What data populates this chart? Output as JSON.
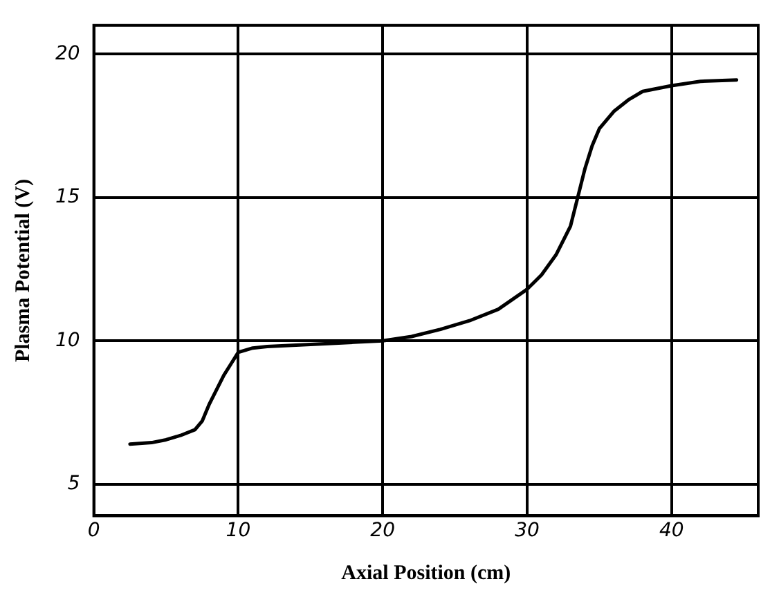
{
  "chart_data": {
    "type": "line",
    "xlabel": "Axial Position (cm)",
    "ylabel": "Plasma Potential (V)",
    "xlim": [
      0,
      46
    ],
    "xticks": [
      0,
      10,
      20,
      30,
      40
    ],
    "ylim": [
      3.9,
      21
    ],
    "yticks": [
      5,
      10,
      15,
      20
    ],
    "grid": true,
    "legend": false,
    "marker": "none",
    "line_style": "solid",
    "series": [
      {
        "color": "#000000",
        "x": [
          2.5,
          4,
          5,
          6,
          7,
          7.5,
          8,
          8.5,
          9,
          9.5,
          10,
          11,
          12,
          14,
          16,
          18,
          20,
          22,
          24,
          26,
          28,
          30,
          31,
          32,
          33,
          33.5,
          34,
          34.5,
          35,
          36,
          37,
          38,
          40,
          42,
          44.5
        ],
        "values": [
          6.4,
          6.45,
          6.55,
          6.7,
          6.9,
          7.2,
          7.8,
          8.3,
          8.8,
          9.2,
          9.6,
          9.75,
          9.8,
          9.85,
          9.9,
          9.95,
          10.0,
          10.15,
          10.4,
          10.7,
          11.1,
          11.8,
          12.3,
          13.0,
          14.0,
          15.0,
          16.0,
          16.8,
          17.4,
          18.0,
          18.4,
          18.7,
          18.9,
          19.05,
          19.1
        ]
      }
    ]
  }
}
